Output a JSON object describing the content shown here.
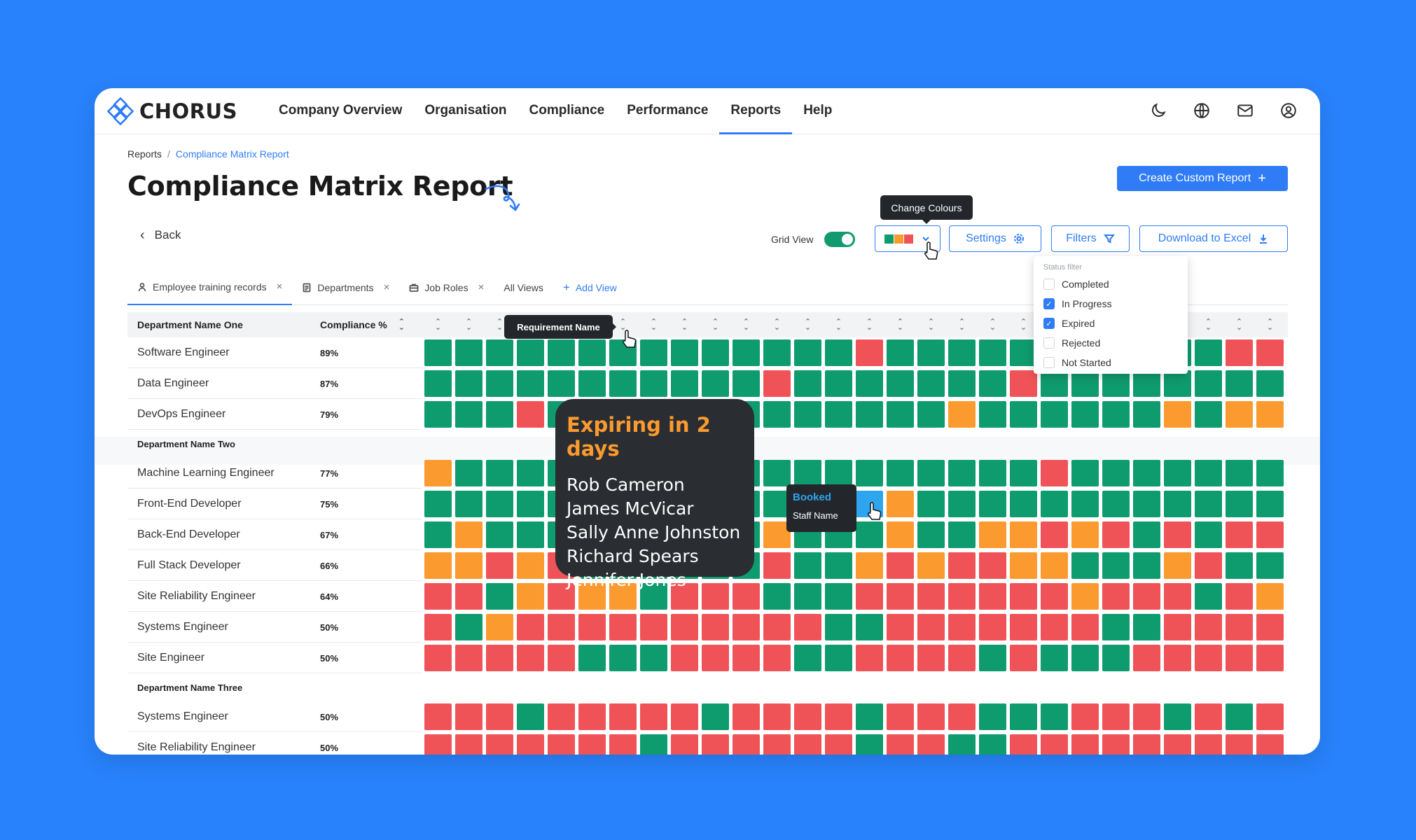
{
  "app": {
    "logo_text": "CHORUS"
  },
  "nav": {
    "items": [
      {
        "label": "Company Overview"
      },
      {
        "label": "Organisation"
      },
      {
        "label": "Compliance"
      },
      {
        "label": "Performance"
      },
      {
        "label": "Reports",
        "active": true
      },
      {
        "label": "Help"
      }
    ],
    "icons": [
      "moon-icon",
      "globe-icon",
      "mail-icon",
      "user-icon"
    ]
  },
  "breadcrumb": {
    "root": "Reports",
    "separator": "/",
    "current": "Compliance Matrix Report"
  },
  "page": {
    "title": "Compliance Matrix Report",
    "back_label": "Back",
    "create_label": "Create Custom Report"
  },
  "toolbar": {
    "grid_view_label": "Grid View",
    "grid_view_on": true,
    "change_colours_tooltip": "Change Colours",
    "settings_label": "Settings",
    "filters_label": "Filters",
    "download_label": "Download to Excel"
  },
  "tabs": [
    {
      "label": "Employee training records",
      "icon": "person-icon",
      "closable": true,
      "active": true
    },
    {
      "label": "Departments",
      "icon": "document-icon",
      "closable": true
    },
    {
      "label": "Job Roles",
      "icon": "briefcase-icon",
      "closable": true
    },
    {
      "label": "All Views",
      "closable": false
    },
    {
      "label": "Add View",
      "icon": "plus-icon",
      "closable": false
    }
  ],
  "status_filter": {
    "title": "Status filter",
    "options": [
      {
        "label": "Completed",
        "checked": false
      },
      {
        "label": "In Progress",
        "checked": true
      },
      {
        "label": "Expired",
        "checked": true
      },
      {
        "label": "Rejected",
        "checked": false
      },
      {
        "label": "Not Started",
        "checked": false
      }
    ]
  },
  "colors": {
    "completed": "#0e9b6e",
    "expired": "#f05357",
    "expiring": "#fb9a2f",
    "booked": "#2da5ef",
    "accent": "#2f7cf6"
  },
  "matrix": {
    "header": {
      "department": "Department Name One",
      "compliance": "Compliance %"
    },
    "requirement_tooltip": "Requirement Name",
    "groups": [
      {
        "department": null,
        "rows": [
          {
            "name": "Software Engineer",
            "pct": "89%",
            "cells": "GGGGGGGGGGGGGGRGGGGGGGGGGGRR"
          },
          {
            "name": "Data Engineer",
            "pct": "87%",
            "cells": "GGGGGGGGGGGRGGGGGGGRGGGGGGGG"
          },
          {
            "name": "DevOps Engineer",
            "pct": "79%",
            "cells": "GGGRGGGGGGGGGGGGGOGGGGGGOGOO"
          }
        ]
      },
      {
        "department": "Department Name Two",
        "rows": [
          {
            "name": "Machine Learning Engineer",
            "pct": "77%",
            "cells": "OGGGGGGGGGGGGGGGGGGGRGGGGGGG"
          },
          {
            "name": "Front-End Developer",
            "pct": "75%",
            "cells": "GGGGGGGGGGGGGGBOGGGGGGGGGGGG"
          },
          {
            "name": "Back-End Developer",
            "pct": "67%",
            "cells": "GOGGGGGGGGGOGGGOGGOORORGRGRR"
          },
          {
            "name": "Full Stack Developer",
            "pct": "66%",
            "cells": "OORORGGGGGGRGGORORROOGGGORGG"
          },
          {
            "name": "Site Reliability Engineer",
            "pct": "64%",
            "cells": "RRGOROOGRRRGGGRRRRRRRORRRGRO"
          },
          {
            "name": "Systems Engineer",
            "pct": "50%",
            "cells": "RGORRRRRRRRRRGGRRRRRRRGGRRRR"
          },
          {
            "name": "Site Engineer",
            "pct": "50%",
            "cells": "RRRRRGGGRRRRGGRRRRGRGGGRRRRR"
          }
        ]
      },
      {
        "department": "Department Name Three",
        "rows": [
          {
            "name": "Systems Engineer",
            "pct": "50%",
            "cells": "RRRGRRRRRGRRRRGRRRGGGRRRGRGR"
          },
          {
            "name": "Site Reliability Engineer",
            "pct": "50%",
            "cells": "RRRRRRRGRRRRRRGRRGGRRRRRRRRR"
          }
        ]
      }
    ]
  },
  "expiring_popover": {
    "title": "Expiring in 2 days",
    "names": [
      "Rob Cameron",
      "James McVicar",
      "Sally Anne Johnston",
      "Richard Spears",
      "Jennifer Jones"
    ]
  },
  "booked_popover": {
    "title": "Booked",
    "subtitle": "Staff Name"
  }
}
